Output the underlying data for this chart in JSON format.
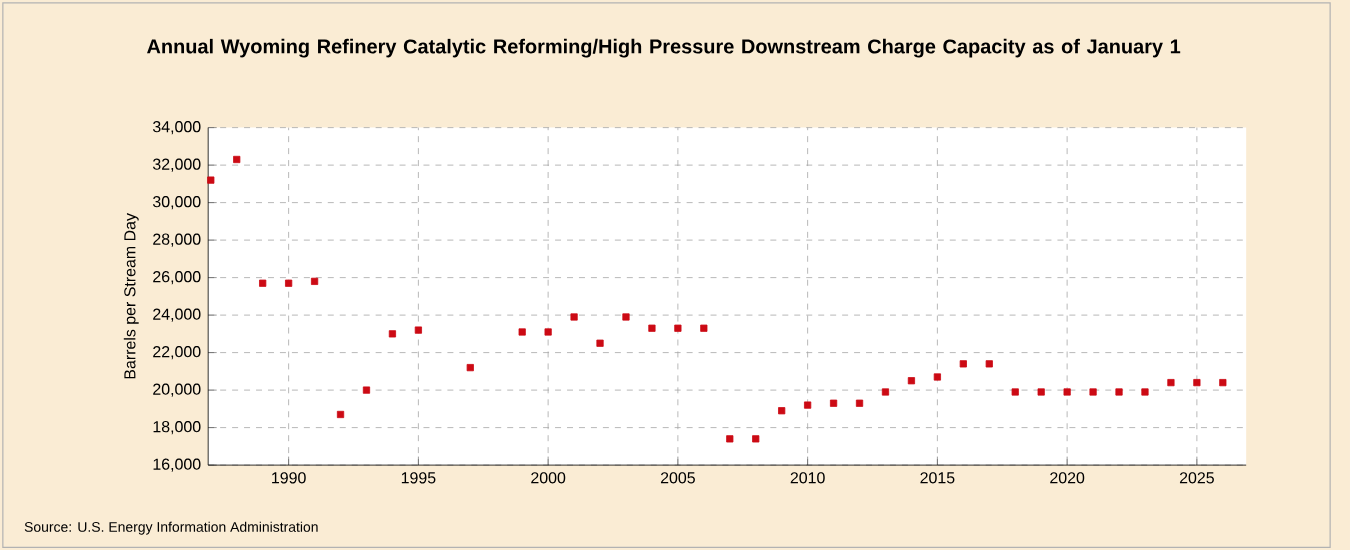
{
  "chart_data": {
    "type": "scatter",
    "title": "Annual Wyoming Refinery Catalytic Reforming/High Pressure Downstream Charge Capacity as of January 1",
    "ylabel": "Barrels per Stream Day",
    "x": [
      1987,
      1988,
      1989,
      1990,
      1991,
      1992,
      1993,
      1994,
      1995,
      1997,
      1999,
      2000,
      2001,
      2002,
      2003,
      2004,
      2005,
      2006,
      2007,
      2008,
      2009,
      2010,
      2011,
      2012,
      2013,
      2014,
      2015,
      2016,
      2017,
      2018,
      2019,
      2020,
      2021,
      2022,
      2023,
      2024,
      2025,
      2026
    ],
    "series": [
      {
        "color": "#cc0a14",
        "values": [
          31200,
          32300,
          25700,
          25700,
          25800,
          18700,
          20000,
          23000,
          23200,
          21200,
          23100,
          23100,
          23900,
          22500,
          23900,
          23300,
          23300,
          23300,
          17400,
          17400,
          18900,
          19200,
          19300,
          19300,
          19900,
          20500,
          20700,
          21400,
          21400,
          19900,
          19900,
          19900,
          19900,
          19900,
          19900,
          20400,
          20400,
          20400
        ]
      }
    ],
    "xlim": [
      1986.9,
      2026.9
    ],
    "xticks": [
      1990,
      1995,
      2000,
      2005,
      2010,
      2015,
      2020,
      2025
    ],
    "ylim": [
      16000,
      34000
    ],
    "yticks": [
      {
        "value": 16000,
        "label": "16,000"
      },
      {
        "value": 18000,
        "label": "18,000"
      },
      {
        "value": 20000,
        "label": "20,000"
      },
      {
        "value": 22000,
        "label": "22,000"
      },
      {
        "value": 24000,
        "label": "24,000"
      },
      {
        "value": 26000,
        "label": "26,000"
      },
      {
        "value": 28000,
        "label": "28,000"
      },
      {
        "value": 30000,
        "label": "30,000"
      },
      {
        "value": 32000,
        "label": "32,000"
      },
      {
        "value": 34000,
        "label": "34,000"
      }
    ],
    "grid": true,
    "marker": "square",
    "annotations": [
      "Source: U.S. Energy Information Administration"
    ]
  }
}
